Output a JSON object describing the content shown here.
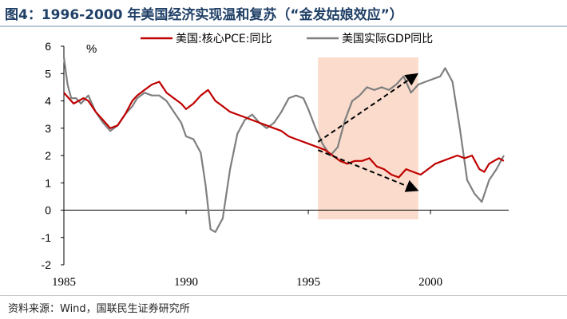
{
  "title": "图4：1996-2000 年美国经济实现温和复苏（“金发姑娘效应”）",
  "source": "资料来源：Wind，国联民生证券研究所",
  "chart_data": {
    "type": "line",
    "title": "图4：1996-2000 年美国经济实现温和复苏（“金发姑娘效应”）",
    "xlabel": "",
    "ylabel": "%",
    "xlim": [
      1985,
      2003.2
    ],
    "ylim": [
      -2,
      6
    ],
    "yticks": [
      -2,
      -1,
      0,
      1,
      2,
      3,
      4,
      5,
      6
    ],
    "yticklabels": [
      "-2",
      "-1",
      "0",
      "1",
      "2",
      "3",
      "4",
      "5",
      "6"
    ],
    "xticks": [
      1985,
      1990,
      1995,
      2000
    ],
    "xticklabels": [
      "1985",
      "1990",
      "1995",
      "2000"
    ],
    "grid": false,
    "legend": "top",
    "highlight_band": {
      "x_start": 1995.4,
      "x_end": 1999.5,
      "color": "#f9d5c3"
    },
    "arrows": [
      {
        "from": [
          1995.4,
          2.5
        ],
        "to": [
          1999.4,
          4.95
        ]
      },
      {
        "from": [
          1995.4,
          2.2
        ],
        "to": [
          1999.4,
          0.75
        ]
      }
    ],
    "series": [
      {
        "name": "美国:核心PCE:同比",
        "color": "#c00000",
        "x": [
          1985.0,
          1985.2,
          1985.4,
          1985.6,
          1985.8,
          1986.0,
          1986.3,
          1986.6,
          1986.9,
          1987.2,
          1987.5,
          1987.8,
          1988.0,
          1988.3,
          1988.6,
          1988.9,
          1989.2,
          1989.5,
          1989.8,
          1990.0,
          1990.3,
          1990.6,
          1990.9,
          1991.2,
          1991.5,
          1991.8,
          1992.1,
          1992.4,
          1992.7,
          1993.0,
          1993.3,
          1993.6,
          1993.9,
          1994.2,
          1994.5,
          1994.8,
          1995.1,
          1995.4,
          1995.7,
          1996.0,
          1996.3,
          1996.6,
          1996.9,
          1997.2,
          1997.5,
          1997.8,
          1998.1,
          1998.4,
          1998.7,
          1999.0,
          1999.3,
          1999.6,
          1999.9,
          2000.2,
          2000.5,
          2000.8,
          2001.1,
          2001.4,
          2001.7,
          2002.0,
          2002.2,
          2002.4,
          2002.6,
          2002.8,
          2003.0
        ],
        "values": [
          4.3,
          4.1,
          3.9,
          4.0,
          4.1,
          4.0,
          3.6,
          3.3,
          3.0,
          3.1,
          3.5,
          4.0,
          4.2,
          4.4,
          4.6,
          4.7,
          4.3,
          4.1,
          3.9,
          3.7,
          3.9,
          4.2,
          4.4,
          4.0,
          3.8,
          3.6,
          3.5,
          3.4,
          3.3,
          3.2,
          3.1,
          3.0,
          2.9,
          2.7,
          2.6,
          2.5,
          2.4,
          2.3,
          2.2,
          2.0,
          1.8,
          1.7,
          1.8,
          1.8,
          1.9,
          1.6,
          1.5,
          1.3,
          1.2,
          1.5,
          1.4,
          1.3,
          1.5,
          1.7,
          1.8,
          1.9,
          2.0,
          1.9,
          2.0,
          1.5,
          1.4,
          1.7,
          1.8,
          1.9,
          1.8
        ]
      },
      {
        "name": "美国实际GDP同比",
        "color": "#7f7f7f",
        "x": [
          1985.0,
          1985.15,
          1985.3,
          1985.5,
          1985.7,
          1986.0,
          1986.3,
          1986.6,
          1986.9,
          1987.2,
          1987.5,
          1987.8,
          1988.0,
          1988.3,
          1988.6,
          1988.9,
          1989.2,
          1989.5,
          1989.8,
          1990.0,
          1990.3,
          1990.6,
          1990.8,
          1991.0,
          1991.2,
          1991.5,
          1991.8,
          1992.1,
          1992.4,
          1992.7,
          1993.0,
          1993.3,
          1993.6,
          1993.9,
          1994.2,
          1994.5,
          1994.8,
          1995.0,
          1995.3,
          1995.6,
          1995.9,
          1996.2,
          1996.5,
          1996.8,
          1997.1,
          1997.4,
          1997.7,
          1998.0,
          1998.3,
          1998.6,
          1998.9,
          1999.2,
          1999.5,
          1999.8,
          2000.1,
          2000.4,
          2000.6,
          2000.9,
          2001.2,
          2001.5,
          2001.8,
          2002.1,
          2002.4,
          2002.7,
          2003.0
        ],
        "values": [
          5.6,
          4.6,
          4.1,
          4.1,
          3.9,
          4.2,
          3.6,
          3.2,
          2.9,
          3.1,
          3.5,
          3.8,
          4.1,
          4.3,
          4.2,
          4.2,
          4.0,
          3.6,
          3.2,
          2.7,
          2.6,
          2.1,
          0.9,
          -0.7,
          -0.8,
          -0.3,
          1.5,
          2.8,
          3.3,
          3.5,
          3.2,
          3.0,
          3.2,
          3.6,
          4.1,
          4.2,
          4.1,
          3.7,
          3.0,
          2.4,
          2.0,
          2.3,
          3.3,
          4.0,
          4.2,
          4.5,
          4.4,
          4.5,
          4.4,
          4.6,
          4.9,
          4.3,
          4.6,
          4.7,
          4.8,
          4.9,
          5.2,
          4.7,
          3.0,
          1.1,
          0.6,
          0.3,
          1.1,
          1.5,
          2.0
        ]
      }
    ]
  }
}
